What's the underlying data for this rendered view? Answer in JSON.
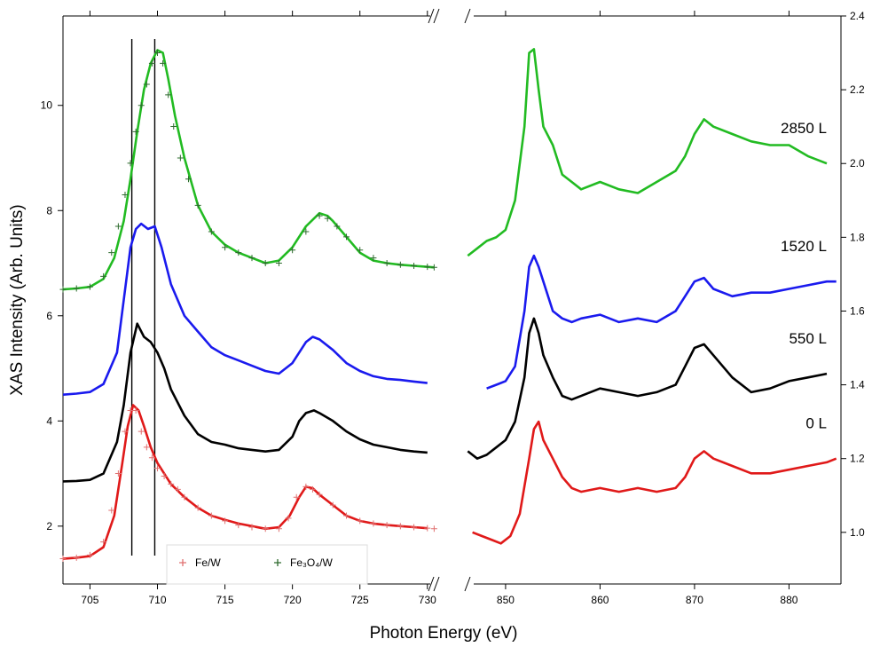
{
  "chart_data": {
    "type": "line",
    "xlabel": "Photon Energy (eV)",
    "ylabel": "XAS Intensity (Arb. Units)",
    "left_panel": {
      "xlim": [
        703,
        731
      ],
      "ylim": [
        0.9,
        11.7
      ],
      "xticks": [
        705,
        710,
        715,
        720,
        725,
        730
      ],
      "yticks": [
        2,
        4,
        6,
        8,
        10
      ],
      "tick_labels_x": [
        "705",
        "710",
        "715",
        "720",
        "725",
        "730"
      ],
      "tick_labels_y": [
        "2",
        "4",
        "6",
        "8",
        "10"
      ],
      "vlines": [
        708.1,
        709.8
      ],
      "series": [
        {
          "color": "#22bb22",
          "x": [
            703,
            704,
            705,
            706,
            706.8,
            707.5,
            708,
            708.5,
            709,
            709.5,
            710,
            710.4,
            710.8,
            711.3,
            712,
            713,
            714,
            715,
            716,
            717,
            718,
            719,
            720,
            721,
            722,
            722.6,
            723,
            724,
            725,
            726,
            727,
            728,
            729,
            730,
            730.5
          ],
          "y": [
            6.5,
            6.52,
            6.55,
            6.7,
            7.1,
            7.8,
            8.6,
            9.5,
            10.3,
            10.8,
            11.05,
            11.0,
            10.5,
            9.8,
            9.0,
            8.1,
            7.6,
            7.35,
            7.2,
            7.1,
            7.0,
            7.05,
            7.3,
            7.7,
            7.95,
            7.9,
            7.8,
            7.5,
            7.2,
            7.05,
            7.0,
            6.97,
            6.95,
            6.93,
            6.92
          ]
        },
        {
          "color": "#1a1aee",
          "x": [
            703,
            704,
            705,
            706,
            707,
            707.5,
            708,
            708.4,
            708.8,
            709.3,
            709.8,
            710.3,
            711,
            712,
            713,
            714,
            715,
            716,
            717,
            718,
            719,
            720,
            721,
            721.5,
            722,
            723,
            724,
            725,
            726,
            727,
            728,
            729,
            730
          ],
          "y": [
            4.5,
            4.52,
            4.55,
            4.7,
            5.3,
            6.3,
            7.3,
            7.65,
            7.75,
            7.65,
            7.7,
            7.3,
            6.6,
            6.0,
            5.7,
            5.4,
            5.25,
            5.15,
            5.05,
            4.95,
            4.9,
            5.1,
            5.5,
            5.6,
            5.55,
            5.35,
            5.1,
            4.95,
            4.85,
            4.8,
            4.78,
            4.75,
            4.72
          ]
        },
        {
          "color": "#000000",
          "x": [
            703,
            704,
            705,
            706,
            707,
            707.5,
            708,
            708.5,
            709,
            709.5,
            710,
            710.5,
            711,
            712,
            713,
            714,
            715,
            716,
            717,
            718,
            719,
            720,
            720.5,
            721,
            721.6,
            722,
            723,
            724,
            725,
            726,
            727,
            728,
            729,
            730
          ],
          "y": [
            2.85,
            2.86,
            2.88,
            3.0,
            3.6,
            4.3,
            5.3,
            5.85,
            5.6,
            5.5,
            5.3,
            5.0,
            4.6,
            4.1,
            3.75,
            3.6,
            3.55,
            3.48,
            3.45,
            3.42,
            3.45,
            3.7,
            4.0,
            4.15,
            4.2,
            4.15,
            4.0,
            3.8,
            3.65,
            3.55,
            3.5,
            3.45,
            3.42,
            3.4
          ]
        },
        {
          "color": "#e01919",
          "x": [
            703,
            704,
            705,
            706,
            706.8,
            707.4,
            707.8,
            708.2,
            708.6,
            709,
            709.5,
            710,
            710.5,
            711,
            712,
            713,
            714,
            715,
            716,
            717,
            718,
            719,
            719.8,
            720.5,
            721,
            721.5,
            722,
            723,
            724,
            725,
            726,
            727,
            728,
            729,
            730
          ],
          "y": [
            1.38,
            1.4,
            1.43,
            1.6,
            2.2,
            3.2,
            3.9,
            4.3,
            4.2,
            3.9,
            3.5,
            3.2,
            3.0,
            2.8,
            2.55,
            2.35,
            2.2,
            2.12,
            2.05,
            2.0,
            1.95,
            1.98,
            2.2,
            2.55,
            2.75,
            2.72,
            2.6,
            2.4,
            2.2,
            2.1,
            2.05,
            2.02,
            2.0,
            1.98,
            1.96
          ]
        }
      ],
      "reference_series": [
        {
          "name": "Fe/W",
          "color": "#e07070",
          "x": [
            703,
            704,
            705,
            706,
            706.6,
            707.1,
            707.6,
            708,
            708.4,
            708.8,
            709.2,
            709.6,
            710,
            710.5,
            711,
            711.5,
            712,
            713,
            714,
            715,
            716,
            717,
            718,
            719,
            719.7,
            720.3,
            721,
            721.5,
            722,
            723,
            724,
            725,
            726,
            727,
            728,
            729,
            730,
            730.5
          ],
          "y": [
            1.38,
            1.4,
            1.45,
            1.7,
            2.3,
            3.0,
            3.8,
            4.2,
            4.2,
            3.8,
            3.5,
            3.3,
            3.1,
            2.95,
            2.8,
            2.7,
            2.55,
            2.35,
            2.2,
            2.1,
            2.02,
            1.98,
            1.95,
            1.95,
            2.15,
            2.55,
            2.75,
            2.7,
            2.6,
            2.4,
            2.2,
            2.1,
            2.05,
            2.02,
            2.0,
            1.98,
            1.96,
            1.95
          ]
        },
        {
          "name": "Fe3O4/W",
          "color": "#2e6b2e",
          "x": [
            703,
            704,
            705,
            706,
            706.6,
            707.1,
            707.6,
            708,
            708.4,
            708.8,
            709.2,
            709.6,
            710,
            710.4,
            710.8,
            711.2,
            711.7,
            712.3,
            713,
            714,
            715,
            716,
            717,
            718,
            719,
            720,
            721,
            722,
            722.6,
            723.3,
            724,
            725,
            726,
            727,
            728,
            729,
            730,
            730.5
          ],
          "y": [
            6.5,
            6.52,
            6.55,
            6.75,
            7.2,
            7.7,
            8.3,
            8.9,
            9.5,
            10.0,
            10.4,
            10.8,
            11.0,
            10.8,
            10.2,
            9.6,
            9.0,
            8.6,
            8.1,
            7.6,
            7.3,
            7.2,
            7.1,
            7.0,
            7.0,
            7.25,
            7.6,
            7.9,
            7.85,
            7.7,
            7.5,
            7.25,
            7.1,
            7.0,
            6.97,
            6.95,
            6.93,
            6.92
          ]
        }
      ],
      "legend_entries": [
        {
          "label": "Fe/W",
          "color": "#e07070"
        },
        {
          "label": "Fe₃O₄/W",
          "color": "#2e6b2e"
        }
      ]
    },
    "right_panel": {
      "xlim": [
        845.5,
        885.5
      ],
      "ylim": [
        0.86,
        2.4
      ],
      "xticks": [
        850,
        860,
        870,
        880
      ],
      "yticks": [
        1.0,
        1.2,
        1.4,
        1.6,
        1.8,
        2.0,
        2.2,
        2.4
      ],
      "tick_labels_x": [
        "850",
        "860",
        "870",
        "880"
      ],
      "tick_labels_y": [
        "1.0",
        "1.2",
        "1.4",
        "1.6",
        "1.8",
        "2.0",
        "2.2",
        "2.4"
      ],
      "series": [
        {
          "label": "2850 L",
          "color": "#22bb22",
          "x": [
            846,
            847,
            848,
            849,
            850,
            851,
            852,
            852.5,
            853,
            853.5,
            854,
            855,
            856,
            857,
            858,
            860,
            862,
            864,
            866,
            868,
            869,
            870,
            871,
            872,
            874,
            876,
            878,
            880,
            882,
            884
          ],
          "y": [
            1.75,
            1.77,
            1.79,
            1.8,
            1.82,
            1.9,
            2.1,
            2.3,
            2.31,
            2.2,
            2.1,
            2.05,
            1.97,
            1.95,
            1.93,
            1.95,
            1.93,
            1.92,
            1.95,
            1.98,
            2.02,
            2.08,
            2.12,
            2.1,
            2.08,
            2.06,
            2.05,
            2.05,
            2.02,
            2.0
          ]
        },
        {
          "label": "1520 L",
          "color": "#1a1aee",
          "x": [
            848,
            849,
            850,
            851,
            852,
            852.5,
            853,
            853.5,
            854,
            855,
            856,
            857,
            858,
            860,
            862,
            864,
            866,
            868,
            869,
            870,
            871,
            872,
            874,
            876,
            878,
            880,
            882,
            884,
            885
          ],
          "y": [
            1.39,
            1.4,
            1.41,
            1.45,
            1.6,
            1.72,
            1.75,
            1.72,
            1.68,
            1.6,
            1.58,
            1.57,
            1.58,
            1.59,
            1.57,
            1.58,
            1.57,
            1.6,
            1.64,
            1.68,
            1.69,
            1.66,
            1.64,
            1.65,
            1.65,
            1.66,
            1.67,
            1.68,
            1.68
          ]
        },
        {
          "label": "550 L",
          "color": "#000000",
          "x": [
            846,
            847,
            848,
            849,
            850,
            851,
            852,
            852.5,
            853,
            853.5,
            854,
            855,
            856,
            857,
            858,
            860,
            862,
            864,
            866,
            868,
            869,
            870,
            871,
            872,
            874,
            876,
            878,
            880,
            882,
            884
          ],
          "y": [
            1.22,
            1.2,
            1.21,
            1.23,
            1.25,
            1.3,
            1.42,
            1.54,
            1.58,
            1.54,
            1.48,
            1.42,
            1.37,
            1.36,
            1.37,
            1.39,
            1.38,
            1.37,
            1.38,
            1.4,
            1.45,
            1.5,
            1.51,
            1.48,
            1.42,
            1.38,
            1.39,
            1.41,
            1.42,
            1.43
          ]
        },
        {
          "label": "0 L",
          "color": "#e01919",
          "x": [
            846.5,
            847.5,
            848.5,
            849.5,
            850.5,
            851.5,
            852.5,
            853,
            853.5,
            854,
            855,
            856,
            857,
            858,
            860,
            862,
            864,
            866,
            868,
            869,
            870,
            871,
            872,
            874,
            876,
            878,
            880,
            882,
            884,
            885
          ],
          "y": [
            1.0,
            0.99,
            0.98,
            0.97,
            0.99,
            1.05,
            1.2,
            1.28,
            1.3,
            1.25,
            1.2,
            1.15,
            1.12,
            1.11,
            1.12,
            1.11,
            1.12,
            1.11,
            1.12,
            1.15,
            1.2,
            1.22,
            1.2,
            1.18,
            1.16,
            1.16,
            1.17,
            1.18,
            1.19,
            1.2
          ]
        }
      ]
    }
  }
}
